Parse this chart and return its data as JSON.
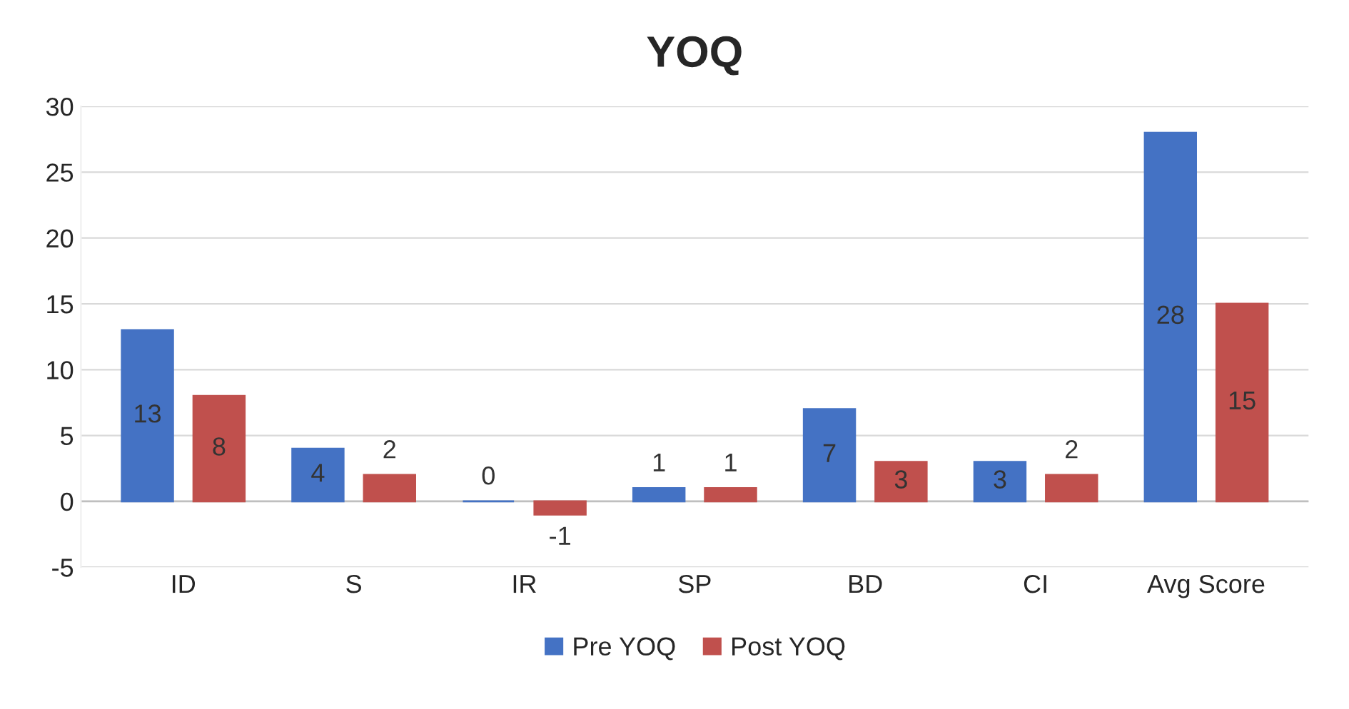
{
  "chart_data": {
    "type": "bar",
    "title": "YOQ",
    "categories": [
      "ID",
      "S",
      "IR",
      "SP",
      "BD",
      "CI",
      "Avg Score"
    ],
    "series": [
      {
        "name": "Pre YOQ",
        "color": "#4472c4",
        "values": [
          13,
          4,
          0,
          1,
          7,
          3,
          28
        ]
      },
      {
        "name": "Post YOQ",
        "color": "#c0504d",
        "values": [
          8,
          2,
          -1,
          1,
          3,
          2,
          15
        ]
      }
    ],
    "ylim": [
      -5,
      30
    ],
    "yticks": [
      -5,
      0,
      5,
      10,
      15,
      20,
      25,
      30
    ],
    "grid": "y",
    "legend": "bottom",
    "data_labels": true
  }
}
